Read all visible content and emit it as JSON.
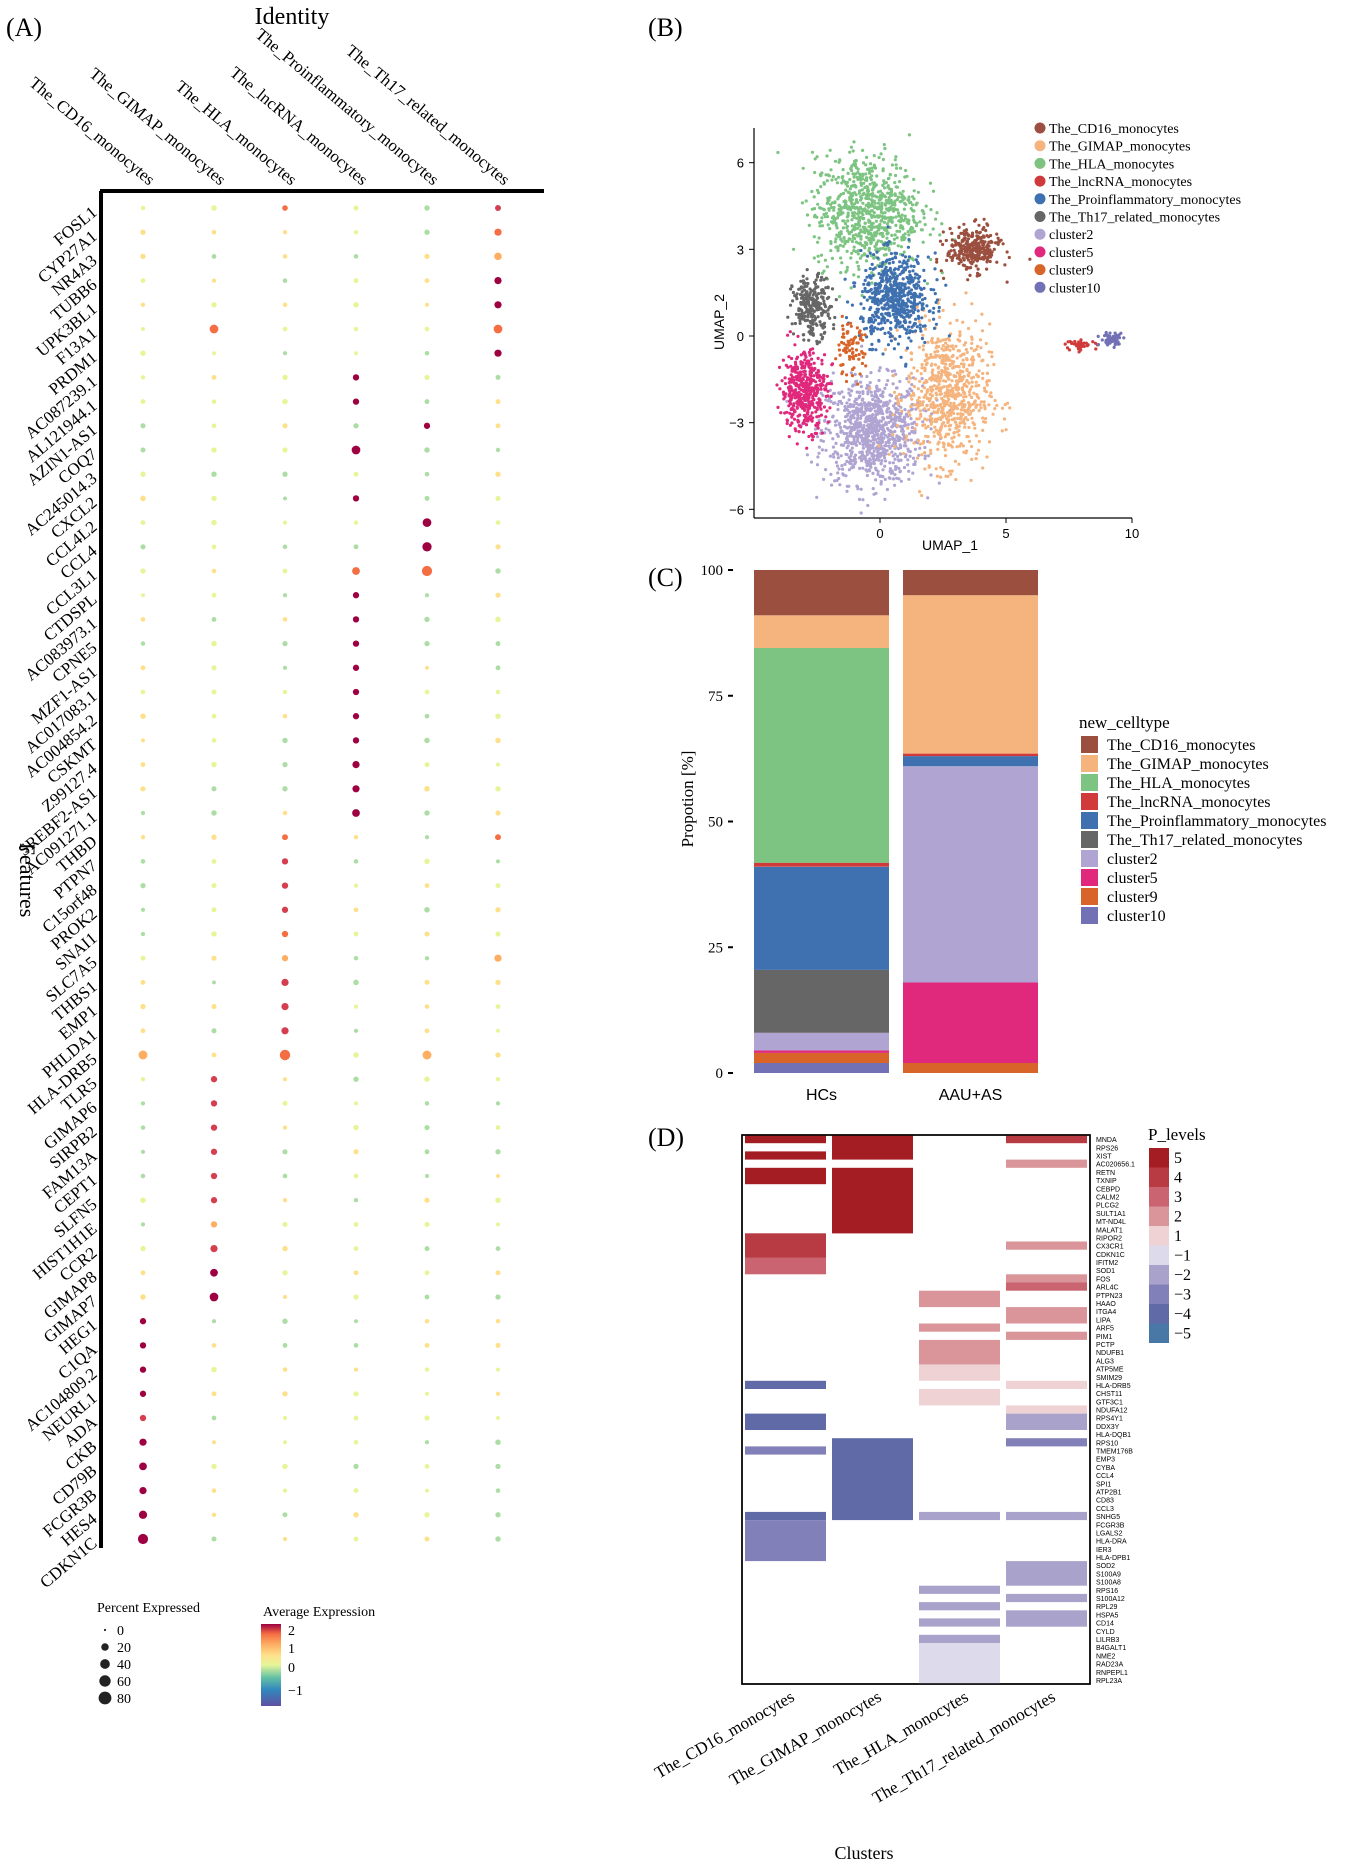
{
  "panels": {
    "a": "(A)",
    "b": "(B)",
    "c": "(C)",
    "d": "(D)"
  },
  "chart_data": [
    {
      "type": "scatter",
      "panel": "A",
      "kind": "dotplot",
      "title": "Identity",
      "ylabel": "Features",
      "identities": [
        "The_CD16_monocytes",
        "The_GIMAP_monocytes",
        "The_HLA_monocytes",
        "The_lncRNA_monocytes",
        "The_Proinflammatory_monocytes",
        "The_Th17_related_monocytes"
      ],
      "features": [
        "FOSL1",
        "CYP27A1",
        "NR4A3",
        "TUBB6",
        "UPK3BL1",
        "F13A1",
        "PRDM1",
        "AC087239.1",
        "AL121944.1",
        "AZIN1-AS1",
        "COQ7",
        "AC245014.3",
        "CXCL2",
        "CCL4L2",
        "CCL4",
        "CCL3L1",
        "CTDSPL",
        "AC083973.1",
        "CPNE5",
        "MZF1-AS1",
        "AC017083.1",
        "AC004854.2",
        "CSKMT",
        "Z99127.4",
        "SREBF2-AS1",
        "AC091271.1",
        "THBD",
        "PTPN7",
        "C15orf48",
        "PROK2",
        "SNAI1",
        "SLC7A5",
        "THBS1",
        "EMP1",
        "PHLDA1",
        "HLA-DRB5",
        "TLR5",
        "GIMAP6",
        "SIRPB2",
        "FAM13A",
        "CEPT1",
        "SLFN5",
        "HIST1H1E",
        "CCR2",
        "GIMAP8",
        "GIMAP7",
        "HEG1",
        "C1QA",
        "AC104809.2",
        "NEURL1",
        "ADA",
        "CKB",
        "CD79B",
        "FCGR3B",
        "HES4",
        "CDKN1C"
      ],
      "highlights": [
        {
          "f": "FOSL1",
          "i": 5,
          "e": 1.5,
          "p": 10
        },
        {
          "f": "FOSL1",
          "i": 2,
          "e": 1.2,
          "p": 8
        },
        {
          "f": "CYP27A1",
          "i": 5,
          "e": 1.3,
          "p": 18
        },
        {
          "f": "NR4A3",
          "i": 5,
          "e": 1.0,
          "p": 20
        },
        {
          "f": "TUBB6",
          "i": 5,
          "e": 2.0,
          "p": 18
        },
        {
          "f": "UPK3BL1",
          "i": 5,
          "e": 2.0,
          "p": 18
        },
        {
          "f": "F13A1",
          "i": 5,
          "e": 1.4,
          "p": 30
        },
        {
          "f": "F13A1",
          "i": 1,
          "e": 1.2,
          "p": 30
        },
        {
          "f": "PRDM1",
          "i": 5,
          "e": 2.0,
          "p": 18
        },
        {
          "f": "AC087239.1",
          "i": 3,
          "e": 2.0,
          "p": 12
        },
        {
          "f": "AL121944.1",
          "i": 3,
          "e": 2.0,
          "p": 12
        },
        {
          "f": "AZIN1-AS1",
          "i": 4,
          "e": 2.0,
          "p": 12
        },
        {
          "f": "COQ7",
          "i": 3,
          "e": 2.0,
          "p": 30
        },
        {
          "f": "CXCL2",
          "i": 3,
          "e": 2.0,
          "p": 12
        },
        {
          "f": "CCL4L2",
          "i": 4,
          "e": 2.0,
          "p": 30
        },
        {
          "f": "CCL4",
          "i": 4,
          "e": 2.0,
          "p": 36
        },
        {
          "f": "CCL3L1",
          "i": 4,
          "e": 1.2,
          "p": 45
        },
        {
          "f": "CCL3L1",
          "i": 3,
          "e": 1.4,
          "p": 22
        },
        {
          "f": "CTDSPL",
          "i": 3,
          "e": 2.0,
          "p": 12
        },
        {
          "f": "AC083973.1",
          "i": 3,
          "e": 2.0,
          "p": 12
        },
        {
          "f": "CPNE5",
          "i": 3,
          "e": 2.0,
          "p": 12
        },
        {
          "f": "MZF1-AS1",
          "i": 3,
          "e": 2.0,
          "p": 12
        },
        {
          "f": "AC017083.1",
          "i": 3,
          "e": 2.0,
          "p": 12
        },
        {
          "f": "AC004854.2",
          "i": 3,
          "e": 2.0,
          "p": 12
        },
        {
          "f": "CSKMT",
          "i": 3,
          "e": 2.0,
          "p": 12
        },
        {
          "f": "Z99127.4",
          "i": 3,
          "e": 2.0,
          "p": 18
        },
        {
          "f": "SREBF2-AS1",
          "i": 3,
          "e": 2.0,
          "p": 18
        },
        {
          "f": "AC091271.1",
          "i": 3,
          "e": 2.0,
          "p": 22
        },
        {
          "f": "THBD",
          "i": 2,
          "e": 1.4,
          "p": 10
        },
        {
          "f": "THBD",
          "i": 5,
          "e": 1.3,
          "p": 10
        },
        {
          "f": "PTPN7",
          "i": 2,
          "e": 1.5,
          "p": 12
        },
        {
          "f": "C15orf48",
          "i": 2,
          "e": 1.5,
          "p": 12
        },
        {
          "f": "PROK2",
          "i": 2,
          "e": 1.5,
          "p": 12
        },
        {
          "f": "SNAI1",
          "i": 2,
          "e": 1.2,
          "p": 12
        },
        {
          "f": "SLC7A5",
          "i": 2,
          "e": 1.0,
          "p": 12
        },
        {
          "f": "SLC7A5",
          "i": 5,
          "e": 1.0,
          "p": 18
        },
        {
          "f": "THBS1",
          "i": 2,
          "e": 1.6,
          "p": 18
        },
        {
          "f": "EMP1",
          "i": 2,
          "e": 1.8,
          "p": 18
        },
        {
          "f": "PHLDA1",
          "i": 2,
          "e": 1.8,
          "p": 18
        },
        {
          "f": "HLA-DRB5",
          "i": 2,
          "e": 1.3,
          "p": 48
        },
        {
          "f": "HLA-DRB5",
          "i": 0,
          "e": 0.9,
          "p": 32
        },
        {
          "f": "HLA-DRB5",
          "i": 4,
          "e": 0.8,
          "p": 32
        },
        {
          "f": "TLR5",
          "i": 1,
          "e": 1.8,
          "p": 12
        },
        {
          "f": "GIMAP6",
          "i": 1,
          "e": 1.8,
          "p": 12
        },
        {
          "f": "SIRPB2",
          "i": 1,
          "e": 1.8,
          "p": 12
        },
        {
          "f": "FAM13A",
          "i": 1,
          "e": 1.5,
          "p": 12
        },
        {
          "f": "CEPT1",
          "i": 1,
          "e": 1.5,
          "p": 12
        },
        {
          "f": "SLFN5",
          "i": 1,
          "e": 1.5,
          "p": 12
        },
        {
          "f": "HIST1H1E",
          "i": 1,
          "e": 1.0,
          "p": 12
        },
        {
          "f": "CCR2",
          "i": 1,
          "e": 1.8,
          "p": 18
        },
        {
          "f": "GIMAP8",
          "i": 1,
          "e": 2.0,
          "p": 22
        },
        {
          "f": "GIMAP7",
          "i": 1,
          "e": 2.0,
          "p": 30
        },
        {
          "f": "HEG1",
          "i": 0,
          "e": 2.0,
          "p": 12
        },
        {
          "f": "C1QA",
          "i": 0,
          "e": 2.0,
          "p": 12
        },
        {
          "f": "AC104809.2",
          "i": 0,
          "e": 2.0,
          "p": 12
        },
        {
          "f": "NEURL1",
          "i": 0,
          "e": 2.0,
          "p": 12
        },
        {
          "f": "ADA",
          "i": 0,
          "e": 1.8,
          "p": 12
        },
        {
          "f": "CKB",
          "i": 0,
          "e": 2.0,
          "p": 18
        },
        {
          "f": "CD79B",
          "i": 0,
          "e": 2.0,
          "p": 22
        },
        {
          "f": "FCGR3B",
          "i": 0,
          "e": 2.0,
          "p": 18
        },
        {
          "f": "HES4",
          "i": 0,
          "e": 2.0,
          "p": 26
        },
        {
          "f": "CDKN1C",
          "i": 0,
          "e": 2.0,
          "p": 45
        }
      ],
      "size_legend": {
        "title": "Percent Expressed",
        "values": [
          0,
          20,
          40,
          60,
          80
        ]
      },
      "color_legend": {
        "title": "Average Expression",
        "ticks": [
          "2",
          "1",
          "0",
          "−1"
        ]
      }
    },
    {
      "type": "scatter",
      "panel": "B",
      "kind": "umap",
      "xlabel": "UMAP_1",
      "ylabel": "UMAP_2",
      "xlim": [
        -5,
        10
      ],
      "ylim": [
        -6.3,
        7.2
      ],
      "xticks": [
        0,
        5,
        10
      ],
      "yticks": [
        6,
        3,
        0,
        -3,
        -6
      ],
      "yticklabels": [
        "6",
        "3",
        "0",
        "−3",
        "−6"
      ],
      "legend_position": "right",
      "clusters": [
        {
          "name": "The_CD16_monocytes",
          "color": "#9b4f3f",
          "center": [
            3.7,
            3.0
          ],
          "spread": [
            0.7,
            0.5
          ],
          "n": 300
        },
        {
          "name": "The_GIMAP_monocytes",
          "color": "#f5b47e",
          "center": [
            2.7,
            -2.0
          ],
          "spread": [
            1.1,
            1.6
          ],
          "n": 700
        },
        {
          "name": "The_HLA_monocytes",
          "color": "#7dc482",
          "center": [
            -0.5,
            4.3
          ],
          "spread": [
            1.4,
            1.3
          ],
          "n": 800
        },
        {
          "name": "The_lncRNA_monocytes",
          "color": "#d03a3a",
          "center": [
            8.0,
            -0.3
          ],
          "spread": [
            0.4,
            0.1
          ],
          "n": 40
        },
        {
          "name": "The_Proinflammatory_monocytes",
          "color": "#3f70b0",
          "center": [
            0.6,
            1.3
          ],
          "spread": [
            0.9,
            1.0
          ],
          "n": 600
        },
        {
          "name": "The_Th17_related_monocytes",
          "color": "#666666",
          "center": [
            -2.7,
            1.0
          ],
          "spread": [
            0.5,
            0.7
          ],
          "n": 250
        },
        {
          "name": "cluster2",
          "color": "#b0a4d2",
          "center": [
            -0.3,
            -3.3
          ],
          "spread": [
            1.3,
            1.2
          ],
          "n": 900
        },
        {
          "name": "cluster5",
          "color": "#e0287d",
          "center": [
            -3.0,
            -1.9
          ],
          "spread": [
            0.6,
            0.9
          ],
          "n": 450
        },
        {
          "name": "cluster9",
          "color": "#d8642a",
          "center": [
            -1.2,
            -0.5
          ],
          "spread": [
            0.4,
            0.6
          ],
          "n": 80
        },
        {
          "name": "cluster10",
          "color": "#7271b5",
          "center": [
            9.2,
            -0.1
          ],
          "spread": [
            0.3,
            0.15
          ],
          "n": 60
        }
      ]
    },
    {
      "type": "bar",
      "panel": "C",
      "stacked": true,
      "ylabel": "Propotion [%]",
      "categories": [
        "HCs",
        "AAU+AS"
      ],
      "ylim": [
        0,
        100
      ],
      "yticks": [
        0,
        25,
        50,
        75,
        100
      ],
      "legend_title": "new_celltype",
      "legend_position": "right",
      "series": [
        {
          "name": "cluster10",
          "color": "#7271b5",
          "values": [
            2,
            0
          ]
        },
        {
          "name": "cluster9",
          "color": "#d8642a",
          "values": [
            2,
            2
          ]
        },
        {
          "name": "cluster5",
          "color": "#e0287d",
          "values": [
            0.5,
            16
          ]
        },
        {
          "name": "cluster2",
          "color": "#b0a4d2",
          "values": [
            3.5,
            43
          ]
        },
        {
          "name": "The_Th17_related_monocytes",
          "color": "#666666",
          "values": [
            12.5,
            0
          ]
        },
        {
          "name": "The_Proinflammatory_monocytes",
          "color": "#3f70b0",
          "values": [
            20.5,
            2
          ]
        },
        {
          "name": "The_lncRNA_monocytes",
          "color": "#d03a3a",
          "values": [
            0.8,
            0.5
          ]
        },
        {
          "name": "The_HLA_monocytes",
          "color": "#7dc482",
          "values": [
            42.7,
            0
          ]
        },
        {
          "name": "The_GIMAP_monocytes",
          "color": "#f5b47e",
          "values": [
            6.5,
            31.5
          ]
        },
        {
          "name": "The_CD16_monocytes",
          "color": "#9b4f3f",
          "values": [
            9,
            5
          ]
        }
      ]
    },
    {
      "type": "heatmap",
      "panel": "D",
      "xlabel": "Clusters",
      "columns": [
        "The_CD16_monocytes",
        "The_GIMAP_monocytes",
        "The_HLA_monocytes",
        "The_Th17_related_monocytes"
      ],
      "rows": [
        "MNDA",
        "RPS26",
        "XIST",
        "AC020656.1",
        "RETN",
        "TXNIP",
        "CEBPD",
        "CALM2",
        "PLCG2",
        "SULT1A1",
        "MT-ND4L",
        "MALAT1",
        "RIPOR2",
        "CX3CR1",
        "CDKN1C",
        "IFITM2",
        "SOD1",
        "FOS",
        "ARL4C",
        "PTPN23",
        "HAAO",
        "ITGA4",
        "LIPA",
        "ARF5",
        "PIM1",
        "PCTP",
        "NDUFB1",
        "ALG3",
        "ATP5ME",
        "SMIM29",
        "HLA-DRB5",
        "CHST11",
        "GTF3C1",
        "NDUFA12",
        "RPS4Y1",
        "DDX3Y",
        "HLA-DQB1",
        "RPS10",
        "TMEM176B",
        "EMP3",
        "CYBA",
        "CCL4",
        "SPI1",
        "ATP2B1",
        "CD83",
        "CCL3",
        "SNHG5",
        "FCGR3B",
        "LGALS2",
        "HLA-DRA",
        "IER3",
        "HLA-DPB1",
        "SOD2",
        "S100A9",
        "S100A8",
        "RPS16",
        "S100A12",
        "RPL29",
        "HSPA5",
        "CD14",
        "CYLD",
        "LILRB3",
        "B4GALT1",
        "NME2",
        "RAD23A",
        "RNPEPL1",
        "RPL23A"
      ],
      "legend_title": "P_levels",
      "legend_levels": [
        "5",
        "4",
        "3",
        "2",
        "1",
        "−1",
        "−2",
        "−3",
        "−4",
        "−5"
      ],
      "cells": [
        {
          "c": 0,
          "r": [
            0,
            0
          ],
          "v": 5
        },
        {
          "c": 0,
          "r": [
            2,
            2
          ],
          "v": 5
        },
        {
          "c": 0,
          "r": [
            4,
            4
          ],
          "v": 5
        },
        {
          "c": 0,
          "r": [
            5,
            5
          ],
          "v": 5
        },
        {
          "c": 0,
          "r": [
            12,
            14
          ],
          "v": 4
        },
        {
          "c": 0,
          "r": [
            15,
            16
          ],
          "v": 3
        },
        {
          "c": 0,
          "r": [
            30,
            30
          ],
          "v": -4
        },
        {
          "c": 0,
          "r": [
            34,
            35
          ],
          "v": -4
        },
        {
          "c": 0,
          "r": [
            38,
            38
          ],
          "v": -3
        },
        {
          "c": 0,
          "r": [
            46,
            46
          ],
          "v": -4
        },
        {
          "c": 0,
          "r": [
            47,
            51
          ],
          "v": -3
        },
        {
          "c": 1,
          "r": [
            0,
            2
          ],
          "v": 5
        },
        {
          "c": 1,
          "r": [
            4,
            11
          ],
          "v": 5
        },
        {
          "c": 1,
          "r": [
            37,
            46
          ],
          "v": -4
        },
        {
          "c": 2,
          "r": [
            19,
            20
          ],
          "v": 2
        },
        {
          "c": 2,
          "r": [
            23,
            23
          ],
          "v": 2
        },
        {
          "c": 2,
          "r": [
            25,
            27
          ],
          "v": 2
        },
        {
          "c": 2,
          "r": [
            28,
            29
          ],
          "v": 1
        },
        {
          "c": 2,
          "r": [
            31,
            32
          ],
          "v": 1
        },
        {
          "c": 2,
          "r": [
            46,
            46
          ],
          "v": -2
        },
        {
          "c": 2,
          "r": [
            55,
            55
          ],
          "v": -2
        },
        {
          "c": 2,
          "r": [
            57,
            57
          ],
          "v": -2
        },
        {
          "c": 2,
          "r": [
            59,
            59
          ],
          "v": -2
        },
        {
          "c": 2,
          "r": [
            61,
            61
          ],
          "v": -2
        },
        {
          "c": 2,
          "r": [
            62,
            66
          ],
          "v": -1
        },
        {
          "c": 3,
          "r": [
            0,
            0
          ],
          "v": 4
        },
        {
          "c": 3,
          "r": [
            3,
            3
          ],
          "v": 2
        },
        {
          "c": 3,
          "r": [
            13,
            13
          ],
          "v": 2
        },
        {
          "c": 3,
          "r": [
            17,
            17
          ],
          "v": 2
        },
        {
          "c": 3,
          "r": [
            18,
            18
          ],
          "v": 3
        },
        {
          "c": 3,
          "r": [
            21,
            22
          ],
          "v": 2
        },
        {
          "c": 3,
          "r": [
            24,
            24
          ],
          "v": 2
        },
        {
          "c": 3,
          "r": [
            30,
            30
          ],
          "v": 1
        },
        {
          "c": 3,
          "r": [
            33,
            33
          ],
          "v": 1
        },
        {
          "c": 3,
          "r": [
            34,
            35
          ],
          "v": -2
        },
        {
          "c": 3,
          "r": [
            37,
            37
          ],
          "v": -3
        },
        {
          "c": 3,
          "r": [
            46,
            46
          ],
          "v": -2
        },
        {
          "c": 3,
          "r": [
            52,
            54
          ],
          "v": -2
        },
        {
          "c": 3,
          "r": [
            56,
            56
          ],
          "v": -2
        },
        {
          "c": 3,
          "r": [
            58,
            59
          ],
          "v": -2
        }
      ]
    }
  ]
}
